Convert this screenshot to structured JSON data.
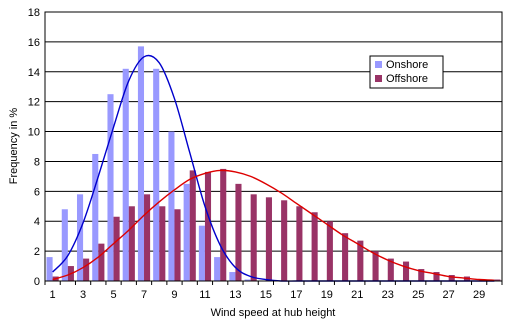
{
  "chart_data": {
    "type": "bar",
    "xlabel": "Wind speed at hub height",
    "ylabel": "Frequency in %",
    "ylim": [
      0,
      18
    ],
    "yticks": [
      0,
      2,
      4,
      6,
      8,
      10,
      12,
      14,
      16,
      18
    ],
    "grid": true,
    "legend_position": "right",
    "x": [
      1,
      2,
      3,
      4,
      5,
      6,
      7,
      8,
      9,
      10,
      11,
      12,
      13,
      14,
      15,
      16,
      17,
      18,
      19,
      20,
      21,
      22,
      23,
      24,
      25,
      26,
      27,
      28,
      29,
      30
    ],
    "xticks": [
      1,
      3,
      5,
      7,
      9,
      11,
      13,
      15,
      17,
      19,
      21,
      23,
      25,
      27,
      29
    ],
    "series": [
      {
        "name": "Onshore",
        "kind": "bar",
        "color": "#9999ff",
        "values": [
          1.6,
          4.8,
          5.8,
          8.5,
          12.5,
          14.2,
          15.7,
          14.2,
          10.0,
          6.5,
          3.7,
          1.6,
          0.6,
          0.1,
          0,
          0,
          0,
          0,
          0,
          0,
          0,
          0,
          0,
          0,
          0,
          0,
          0,
          0,
          0,
          0
        ]
      },
      {
        "name": "Offshore",
        "kind": "bar",
        "color": "#993366",
        "values": [
          0.3,
          1.0,
          1.5,
          2.5,
          4.3,
          5.0,
          5.8,
          5.0,
          4.8,
          7.4,
          7.3,
          7.5,
          6.5,
          5.8,
          5.6,
          5.4,
          5.0,
          4.6,
          4.0,
          3.2,
          2.7,
          2.0,
          1.5,
          1.3,
          0.8,
          0.6,
          0.4,
          0.3,
          0.1,
          0.1
        ]
      },
      {
        "name": "",
        "kind": "curve",
        "color": "#0000cc",
        "values": [
          0.6,
          1.7,
          3.9,
          7.0,
          10.3,
          13.4,
          15.0,
          14.6,
          12.2,
          8.6,
          5.0,
          2.4,
          0.9,
          0.3,
          0.1,
          0,
          0,
          0,
          0,
          0,
          0,
          0,
          0,
          0,
          0,
          0,
          0,
          0,
          0,
          0
        ]
      },
      {
        "name": "",
        "kind": "curve",
        "color": "#dd0000",
        "values": [
          0.1,
          0.4,
          0.9,
          1.6,
          2.5,
          3.4,
          4.4,
          5.3,
          6.1,
          6.8,
          7.2,
          7.4,
          7.3,
          7.0,
          6.5,
          5.9,
          5.2,
          4.5,
          3.8,
          3.1,
          2.5,
          1.9,
          1.4,
          1.0,
          0.7,
          0.5,
          0.3,
          0.2,
          0.1,
          0.05
        ]
      }
    ]
  }
}
